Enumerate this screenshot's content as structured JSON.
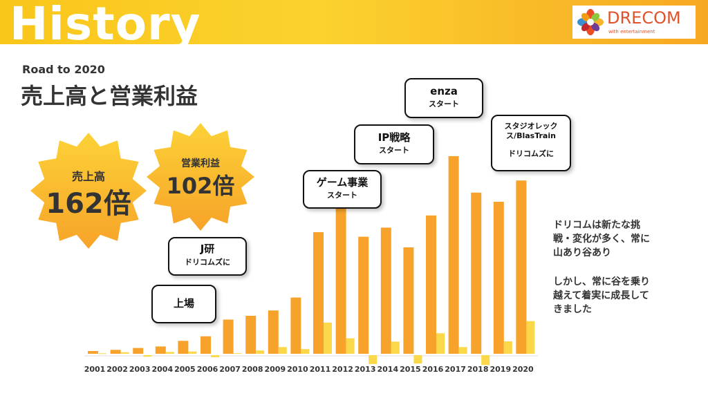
{
  "header": {
    "title": "History"
  },
  "logo": {
    "name": "DRECOM",
    "tagline": "with entertainment"
  },
  "slide": {
    "subtitle": "Road to 2020",
    "title": "売上高と営業利益"
  },
  "badges": {
    "sales": {
      "label": "売上高",
      "value": "162倍"
    },
    "profit": {
      "label": "営業利益",
      "value": "102倍"
    }
  },
  "callouts": {
    "ipo": {
      "line1": "上場"
    },
    "jken": {
      "line1": "J研",
      "line2": "ドリコムズに"
    },
    "game": {
      "line1": "ゲーム事業",
      "line2": "スタート"
    },
    "ip": {
      "line1": "IP戦略",
      "line2": "スタート"
    },
    "enza": {
      "line1": "enza",
      "line2": "スタート"
    },
    "studio": {
      "line1": "スタジオレック",
      "line2": "ス/BlasTrain",
      "line3": "ドリコムズに"
    }
  },
  "side_text": {
    "p1": [
      "ドリコムは新たな挑",
      "戦・変化が多く、常に",
      "山あり谷あり"
    ],
    "p2": [
      "しかし、常に谷を乗り",
      "越えて着実に成長して",
      "きました"
    ]
  },
  "colors": {
    "sales": "#f7a32b",
    "profit": "#fbd84a",
    "header": "#f9c61a",
    "accent": "#e0532a"
  },
  "chart_data": {
    "type": "bar",
    "categories": [
      "2001",
      "2002",
      "2003",
      "2004",
      "2005",
      "2006",
      "2007",
      "2008",
      "2009",
      "2010",
      "2011",
      "2012",
      "2013",
      "2014",
      "2015",
      "2016",
      "2017",
      "2018",
      "2019",
      "2020"
    ],
    "series": [
      {
        "name": "",
        "values": [
          1.8,
          2.6,
          3.8,
          4.8,
          8.5,
          11.5,
          22.5,
          25,
          28.5,
          37,
          80,
          98,
          77,
          83,
          70,
          91,
          130,
          106,
          100,
          114
        ]
      },
      {
        "name": "",
        "values": [
          0.3,
          1,
          -1,
          1.2,
          1.5,
          -1.3,
          0.4,
          2.2,
          4.4,
          3.1,
          20.5,
          10.2,
          -5.8,
          8,
          -5.5,
          13.5,
          4.4,
          -6.5,
          8.2,
          21.5
        ]
      }
    ],
    "ylim": [
      -10,
      140
    ],
    "grid": false,
    "legend": "none"
  }
}
